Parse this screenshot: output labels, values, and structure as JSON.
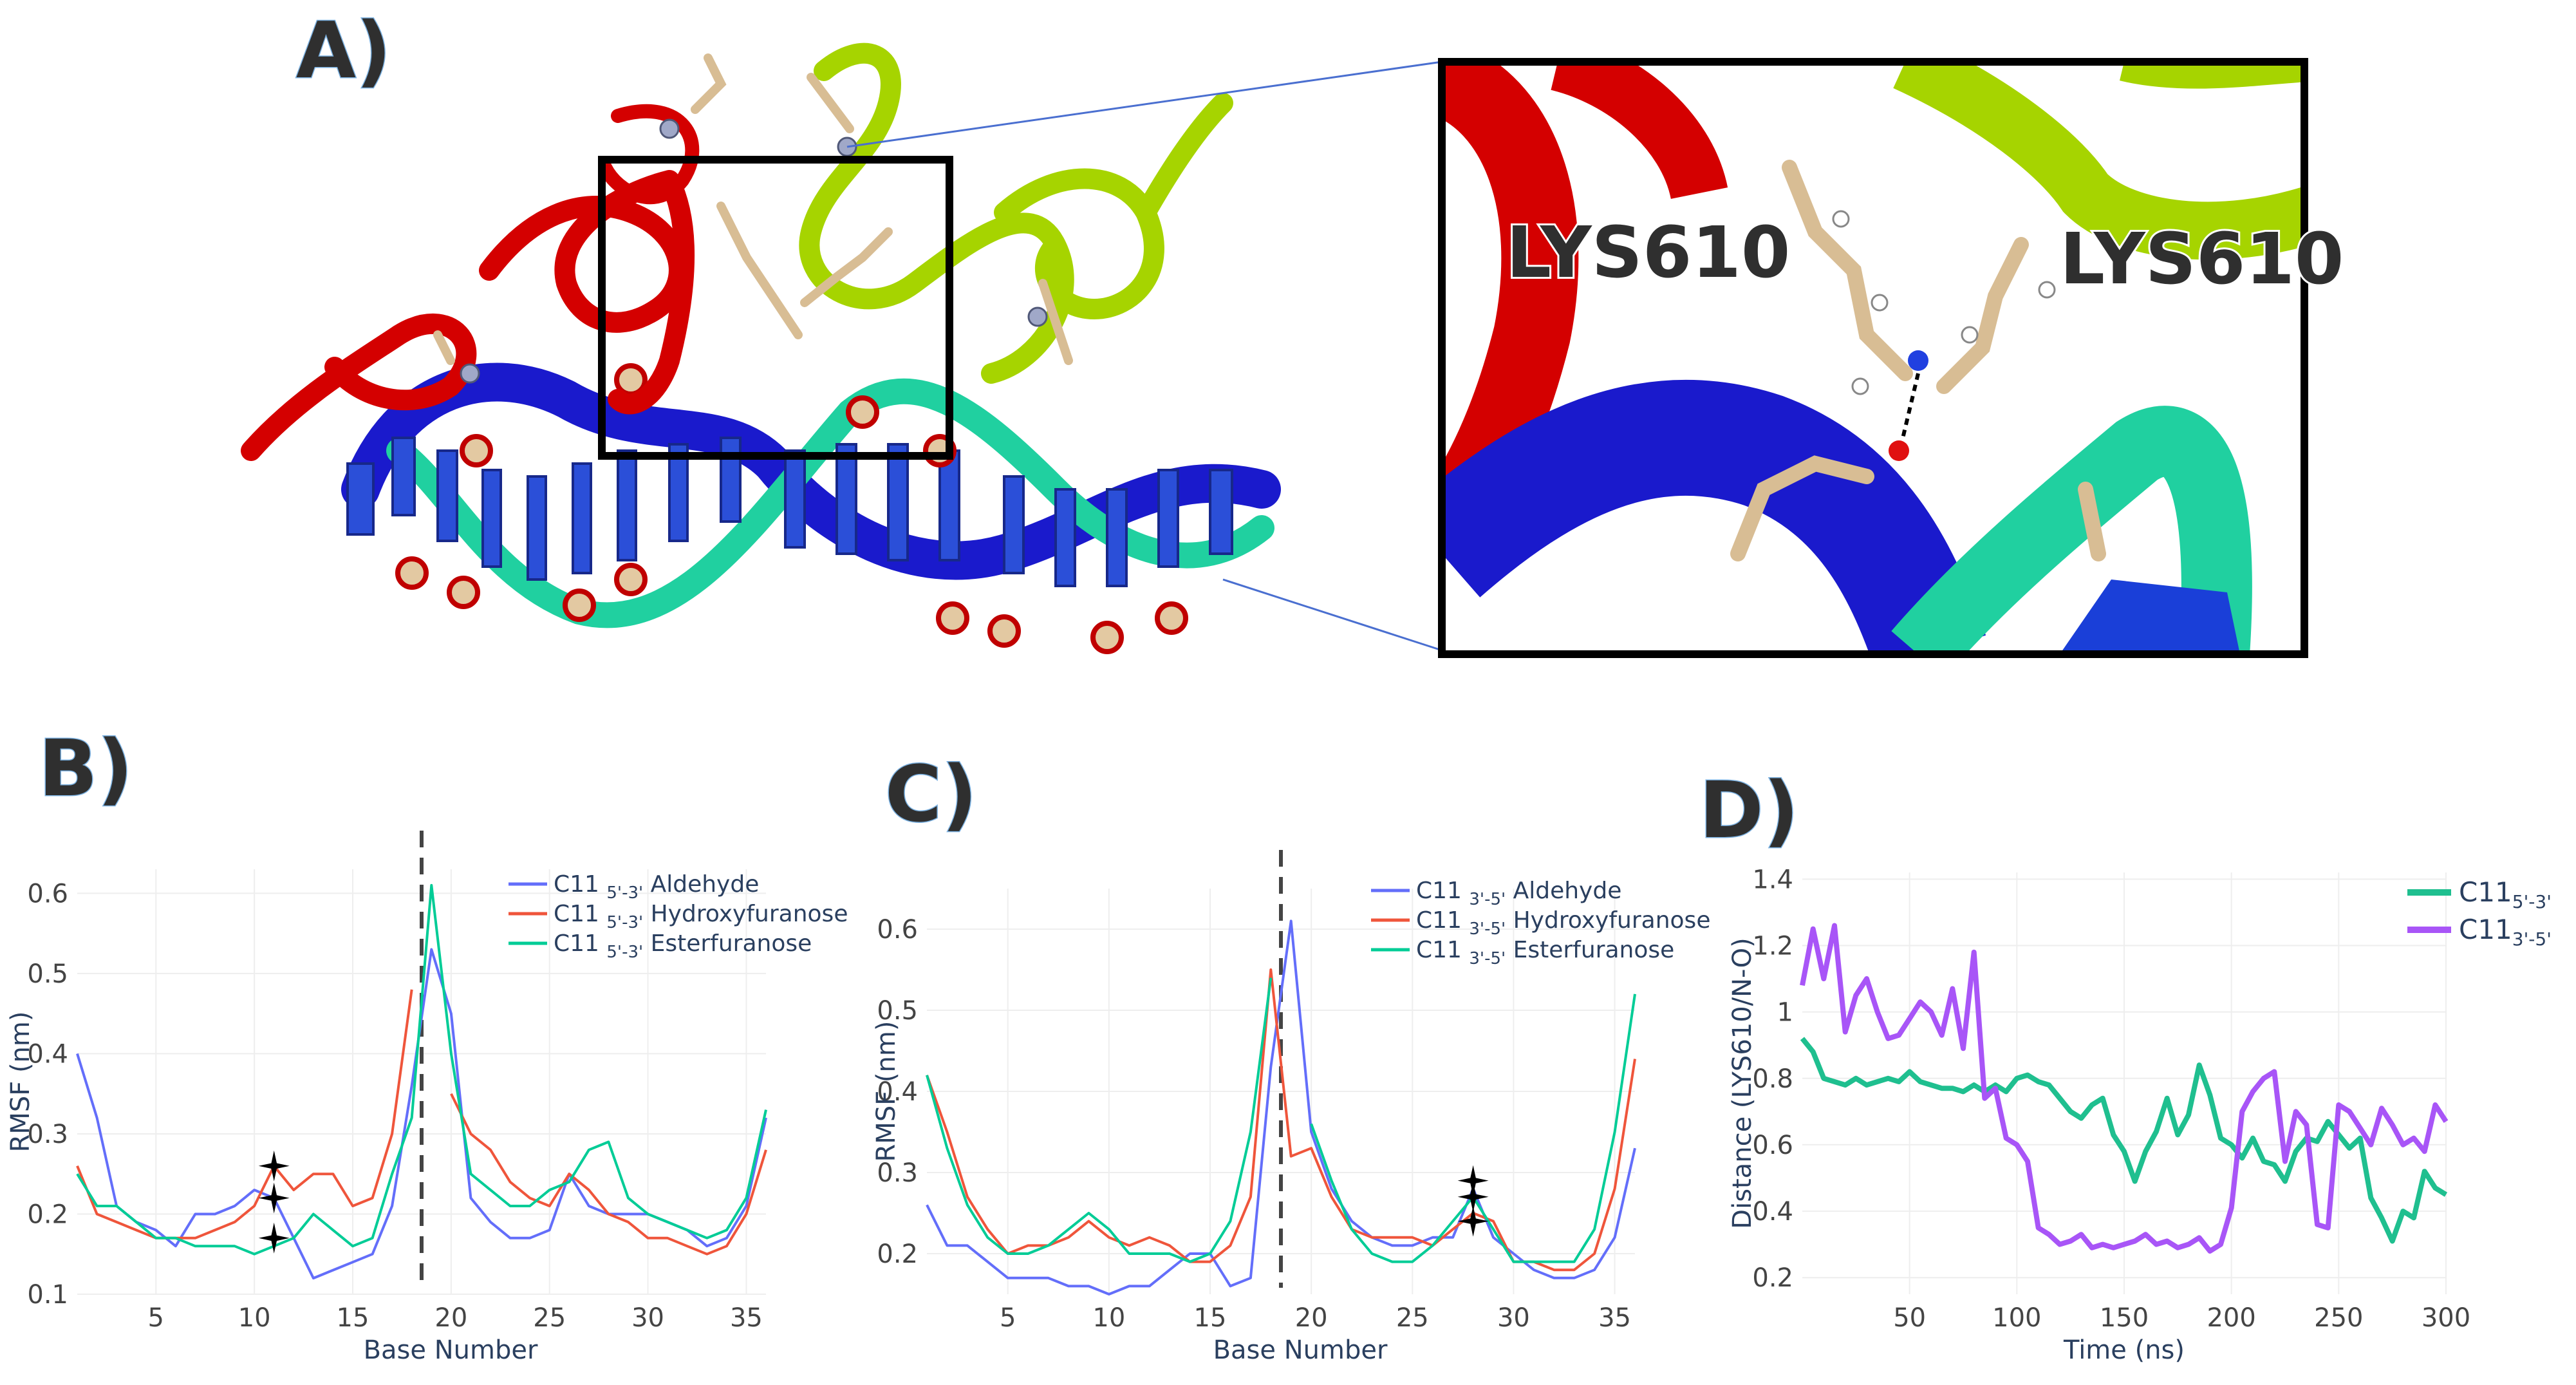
{
  "panel_labels": {
    "a": "A)",
    "b": "B)",
    "c": "C)",
    "d": "D)"
  },
  "structure": {
    "residue_label_left": "LYS610",
    "residue_label_right": "LYS610"
  },
  "colors": {
    "aldehyde": "#636efa",
    "hydroxyfuranose": "#ef553b",
    "esterfuranose": "#00cc96",
    "c11_53": "#1fbf8f",
    "c11_35": "#a855f7",
    "protein_red": "#d40000",
    "protein_green": "#a6d400",
    "dna_blue": "#1a1acc",
    "dna_teal": "#20d0a0"
  },
  "chart_data": [
    {
      "id": "B",
      "type": "line",
      "xlabel": "Base Number",
      "ylabel": "RMSF (nm)",
      "x_ticks": [
        5,
        10,
        15,
        20,
        25,
        30,
        35
      ],
      "y_ticks": [
        0.1,
        0.2,
        0.3,
        0.4,
        0.5,
        0.6
      ],
      "xlim": [
        1,
        36
      ],
      "ylim": [
        0.1,
        0.63
      ],
      "divider_x": 18.5,
      "stars": [
        {
          "x": 11,
          "y": 0.26
        },
        {
          "x": 11,
          "y": 0.22
        },
        {
          "x": 11,
          "y": 0.17
        }
      ],
      "legend": {
        "prefix": "C11",
        "subscript": "5'-3'",
        "entries": [
          "Aldehyde",
          "Hydroxyfuranose",
          "Esterfuranose"
        ]
      },
      "x": [
        1,
        2,
        3,
        4,
        5,
        6,
        7,
        8,
        9,
        10,
        11,
        12,
        13,
        14,
        15,
        16,
        17,
        18,
        19,
        20,
        21,
        22,
        23,
        24,
        25,
        26,
        27,
        28,
        29,
        30,
        31,
        32,
        33,
        34,
        35,
        36
      ],
      "series": [
        {
          "name": "Aldehyde",
          "color_key": "aldehyde",
          "values": [
            0.4,
            0.32,
            0.21,
            0.19,
            0.18,
            0.16,
            0.2,
            0.2,
            0.21,
            0.23,
            0.22,
            0.17,
            0.12,
            0.13,
            0.14,
            0.15,
            0.21,
            0.36,
            0.53,
            0.45,
            0.22,
            0.19,
            0.17,
            0.17,
            0.18,
            0.25,
            0.21,
            0.2,
            0.2,
            0.2,
            0.19,
            0.18,
            0.16,
            0.17,
            0.21,
            0.32
          ]
        },
        {
          "name": "Hydroxyfuranose",
          "color_key": "hydroxyfuranose",
          "values": [
            0.26,
            0.2,
            0.19,
            0.18,
            0.17,
            0.17,
            0.17,
            0.18,
            0.19,
            0.21,
            0.26,
            0.23,
            0.25,
            0.25,
            0.21,
            0.22,
            0.3,
            0.48,
            null,
            0.35,
            0.3,
            0.28,
            0.24,
            0.22,
            0.21,
            0.25,
            0.23,
            0.2,
            0.19,
            0.17,
            0.17,
            0.16,
            0.15,
            0.16,
            0.2,
            0.28
          ]
        },
        {
          "name": "Esterfuranose",
          "color_key": "esterfuranose",
          "values": [
            0.25,
            0.21,
            0.21,
            0.19,
            0.17,
            0.17,
            0.16,
            0.16,
            0.16,
            0.15,
            0.16,
            0.17,
            0.2,
            0.18,
            0.16,
            0.17,
            0.25,
            0.32,
            0.61,
            0.4,
            0.25,
            0.23,
            0.21,
            0.21,
            0.23,
            0.24,
            0.28,
            0.29,
            0.22,
            0.2,
            0.19,
            0.18,
            0.17,
            0.18,
            0.22,
            0.33
          ]
        }
      ]
    },
    {
      "id": "C",
      "type": "line",
      "xlabel": "Base Number",
      "ylabel": "RMSF (nm)",
      "x_ticks": [
        5,
        10,
        15,
        20,
        25,
        30,
        35
      ],
      "y_ticks": [
        0.2,
        0.3,
        0.4,
        0.5,
        0.6
      ],
      "xlim": [
        1,
        36
      ],
      "ylim": [
        0.15,
        0.65
      ],
      "divider_x": 18.5,
      "stars": [
        {
          "x": 28,
          "y": 0.29
        },
        {
          "x": 28,
          "y": 0.27
        },
        {
          "x": 28,
          "y": 0.24
        }
      ],
      "legend": {
        "prefix": "C11",
        "subscript": "3'-5'",
        "entries": [
          "Aldehyde",
          "Hydroxyfuranose",
          "Esterfuranose"
        ]
      },
      "x": [
        1,
        2,
        3,
        4,
        5,
        6,
        7,
        8,
        9,
        10,
        11,
        12,
        13,
        14,
        15,
        16,
        17,
        18,
        19,
        20,
        21,
        22,
        23,
        24,
        25,
        26,
        27,
        28,
        29,
        30,
        31,
        32,
        33,
        34,
        35,
        36
      ],
      "series": [
        {
          "name": "Aldehyde",
          "color_key": "aldehyde",
          "values": [
            0.26,
            0.21,
            0.21,
            0.19,
            0.17,
            0.17,
            0.17,
            0.16,
            0.16,
            0.15,
            0.16,
            0.16,
            0.18,
            0.2,
            0.2,
            0.16,
            0.17,
            0.43,
            0.61,
            0.35,
            0.28,
            0.24,
            0.22,
            0.21,
            0.21,
            0.22,
            0.22,
            0.28,
            0.22,
            0.2,
            0.18,
            0.17,
            0.17,
            0.18,
            0.22,
            0.33
          ]
        },
        {
          "name": "Hydroxyfuranose",
          "color_key": "hydroxyfuranose",
          "values": [
            0.42,
            0.35,
            0.27,
            0.23,
            0.2,
            0.21,
            0.21,
            0.22,
            0.24,
            0.22,
            0.21,
            0.22,
            0.21,
            0.19,
            0.19,
            0.21,
            0.27,
            0.55,
            0.32,
            0.33,
            0.27,
            0.23,
            0.22,
            0.22,
            0.22,
            0.21,
            0.23,
            0.25,
            0.24,
            0.19,
            0.19,
            0.18,
            0.18,
            0.2,
            0.28,
            0.44
          ]
        },
        {
          "name": "Esterfuranose",
          "color_key": "esterfuranose",
          "values": [
            0.42,
            0.33,
            0.26,
            0.22,
            0.2,
            0.2,
            0.21,
            0.23,
            0.25,
            0.23,
            0.2,
            0.2,
            0.2,
            0.19,
            0.2,
            0.24,
            0.35,
            0.54,
            null,
            0.36,
            0.29,
            0.23,
            0.2,
            0.19,
            0.19,
            0.21,
            0.24,
            0.27,
            0.23,
            0.19,
            0.19,
            0.19,
            0.19,
            0.23,
            0.35,
            0.52
          ]
        }
      ]
    },
    {
      "id": "D",
      "type": "line",
      "xlabel": "Time (ns)",
      "ylabel": "Distance (LYS610/N-O)",
      "x_ticks": [
        50,
        100,
        150,
        200,
        250,
        300
      ],
      "y_ticks": [
        0.2,
        0.4,
        0.6,
        0.8,
        1,
        1.2,
        1.4
      ],
      "xlim": [
        0,
        300
      ],
      "ylim": [
        0.15,
        1.42
      ],
      "legend": {
        "prefix": "C11",
        "entries": [
          {
            "name": "C11",
            "subscript": "5'-3'",
            "color_key": "c11_53"
          },
          {
            "name": "C11",
            "subscript": "3'-5'",
            "color_key": "c11_35"
          }
        ]
      },
      "x": [
        0,
        5,
        10,
        15,
        20,
        25,
        30,
        35,
        40,
        45,
        50,
        55,
        60,
        65,
        70,
        75,
        80,
        85,
        90,
        95,
        100,
        105,
        110,
        115,
        120,
        125,
        130,
        135,
        140,
        145,
        150,
        155,
        160,
        165,
        170,
        175,
        180,
        185,
        190,
        195,
        200,
        205,
        210,
        215,
        220,
        225,
        230,
        235,
        240,
        245,
        250,
        255,
        260,
        265,
        270,
        275,
        280,
        285,
        290,
        295,
        300
      ],
      "series": [
        {
          "name": "C11 5'-3'",
          "color_key": "c11_53",
          "values": [
            0.92,
            0.88,
            0.8,
            0.79,
            0.78,
            0.8,
            0.78,
            0.79,
            0.8,
            0.79,
            0.82,
            0.79,
            0.78,
            0.77,
            0.77,
            0.76,
            0.78,
            0.76,
            0.78,
            0.76,
            0.8,
            0.81,
            0.79,
            0.78,
            0.74,
            0.7,
            0.68,
            0.72,
            0.74,
            0.63,
            0.58,
            0.49,
            0.58,
            0.64,
            0.74,
            0.63,
            0.69,
            0.84,
            0.75,
            0.62,
            0.6,
            0.56,
            0.62,
            0.55,
            0.54,
            0.49,
            0.58,
            0.62,
            0.61,
            0.67,
            0.63,
            0.59,
            0.62,
            0.44,
            0.38,
            0.31,
            0.4,
            0.38,
            0.52,
            0.47,
            0.45
          ]
        },
        {
          "name": "C11 3'-5'",
          "color_key": "c11_35",
          "values": [
            1.08,
            1.25,
            1.1,
            1.26,
            0.94,
            1.05,
            1.1,
            1.0,
            0.92,
            0.93,
            0.98,
            1.03,
            1.0,
            0.93,
            1.07,
            0.89,
            1.18,
            0.74,
            0.77,
            0.62,
            0.6,
            0.55,
            0.35,
            0.33,
            0.3,
            0.31,
            0.33,
            0.29,
            0.3,
            0.29,
            0.3,
            0.31,
            0.33,
            0.3,
            0.31,
            0.29,
            0.3,
            0.32,
            0.28,
            0.3,
            0.41,
            0.7,
            0.76,
            0.8,
            0.82,
            0.55,
            0.7,
            0.66,
            0.36,
            0.35,
            0.72,
            0.7,
            0.65,
            0.6,
            0.71,
            0.66,
            0.6,
            0.62,
            0.58,
            0.72,
            0.67
          ]
        }
      ]
    }
  ]
}
